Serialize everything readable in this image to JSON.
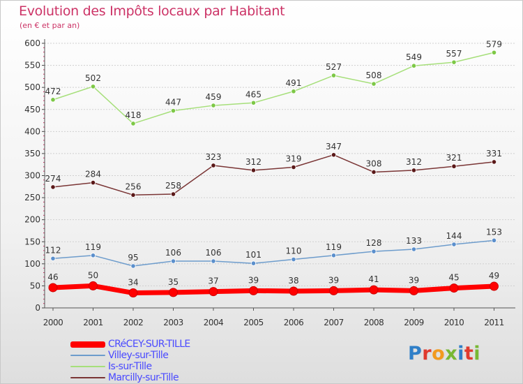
{
  "title": "Evolution des Impôts locaux par Habitant",
  "subtitle": "(en € et par an)",
  "logo": {
    "text": "Proxiti",
    "letters": [
      {
        "ch": "P",
        "color": "#2f7fc8"
      },
      {
        "ch": "r",
        "color": "#e03a2e"
      },
      {
        "ch": "o",
        "color": "#f29a1f"
      },
      {
        "ch": "x",
        "color": "#78b833"
      },
      {
        "ch": "i",
        "color": "#2f7fc8"
      },
      {
        "ch": "t",
        "color": "#e03a2e"
      },
      {
        "ch": "i",
        "color": "#78b833"
      }
    ]
  },
  "chart_data": {
    "type": "line",
    "title": "Evolution des Impôts locaux par Habitant",
    "subtitle": "(en € et par an)",
    "xlabel": "",
    "ylabel": "",
    "x": [
      "2000",
      "2001",
      "2002",
      "2003",
      "2004",
      "2005",
      "2006",
      "2007",
      "2008",
      "2009",
      "2010",
      "2011"
    ],
    "ylim": [
      0,
      600
    ],
    "yticks": [
      0,
      50,
      100,
      150,
      200,
      250,
      300,
      350,
      400,
      450,
      500,
      550,
      600
    ],
    "grid": "horizontal",
    "legend_position": "bottom-left",
    "series": [
      {
        "name": "CRéCEY-SUR-TILLE",
        "color": "#ff0000",
        "marker_color": "#ff0000",
        "highlight": true,
        "values": [
          46,
          50,
          34,
          35,
          37,
          39,
          38,
          39,
          41,
          39,
          45,
          49
        ]
      },
      {
        "name": "Villey-sur-Tille",
        "color": "#6d9ccc",
        "marker_color": "#5b8fcc",
        "highlight": false,
        "values": [
          112,
          119,
          95,
          106,
          106,
          101,
          110,
          119,
          128,
          133,
          144,
          153
        ]
      },
      {
        "name": "Is-sur-Tille",
        "color": "#a6df7a",
        "marker_color": "#7dc846",
        "highlight": false,
        "values": [
          472,
          502,
          418,
          447,
          459,
          465,
          491,
          527,
          508,
          549,
          557,
          579
        ]
      },
      {
        "name": "Marcilly-sur-Tille",
        "color": "#7a3535",
        "marker_color": "#5a1818",
        "highlight": false,
        "values": [
          274,
          284,
          256,
          258,
          323,
          312,
          319,
          347,
          308,
          312,
          321,
          331
        ]
      }
    ]
  }
}
